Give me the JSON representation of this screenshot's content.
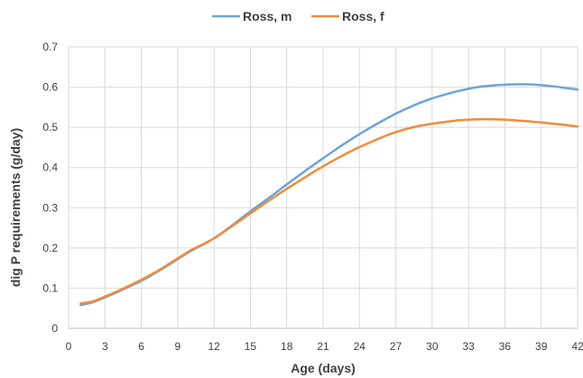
{
  "chart_data": {
    "type": "line",
    "title": "",
    "xlabel": "Age (days)",
    "ylabel": "dig P requirements (g/day)",
    "xlim": [
      0,
      42
    ],
    "ylim": [
      0,
      0.7
    ],
    "x_ticks": [
      0,
      3,
      6,
      9,
      12,
      15,
      18,
      21,
      24,
      27,
      30,
      33,
      36,
      39,
      42
    ],
    "y_ticks": [
      0,
      0.1,
      0.2,
      0.3,
      0.4,
      0.5,
      0.6,
      0.7
    ],
    "y_tick_labels": [
      "0",
      "0.1",
      "0.2",
      "0.3",
      "0.4",
      "0.5",
      "0.6",
      "0.7"
    ],
    "grid": "vertical and horizontal",
    "legend_position": "top-center",
    "series": [
      {
        "name": "Ross, m",
        "color": "#6fa3d6",
        "x": [
          1,
          2,
          3,
          4,
          5,
          6,
          7,
          8,
          9,
          10,
          11,
          12,
          13,
          14,
          15,
          16,
          17,
          18,
          19,
          20,
          21,
          22,
          23,
          24,
          25,
          26,
          27,
          28,
          29,
          30,
          31,
          32,
          33,
          34,
          35,
          36,
          37,
          38,
          39,
          40,
          41,
          42
        ],
        "y": [
          0.058,
          0.065,
          0.077,
          0.09,
          0.104,
          0.118,
          0.135,
          0.153,
          0.172,
          0.191,
          0.207,
          0.224,
          0.245,
          0.268,
          0.291,
          0.313,
          0.335,
          0.358,
          0.38,
          0.402,
          0.423,
          0.444,
          0.464,
          0.483,
          0.501,
          0.518,
          0.534,
          0.548,
          0.561,
          0.572,
          0.581,
          0.589,
          0.596,
          0.601,
          0.604,
          0.606,
          0.607,
          0.607,
          0.605,
          0.602,
          0.598,
          0.594
        ]
      },
      {
        "name": "Ross, f",
        "color": "#ed8d3e",
        "x": [
          1,
          2,
          3,
          4,
          5,
          6,
          7,
          8,
          9,
          10,
          11,
          12,
          13,
          14,
          15,
          16,
          17,
          18,
          19,
          20,
          21,
          22,
          23,
          24,
          25,
          26,
          27,
          28,
          29,
          30,
          31,
          32,
          33,
          34,
          35,
          36,
          37,
          38,
          39,
          40,
          41,
          42
        ],
        "y": [
          0.062,
          0.067,
          0.079,
          0.092,
          0.106,
          0.121,
          0.137,
          0.155,
          0.174,
          0.193,
          0.208,
          0.224,
          0.244,
          0.265,
          0.286,
          0.307,
          0.327,
          0.347,
          0.366,
          0.385,
          0.403,
          0.42,
          0.436,
          0.451,
          0.464,
          0.477,
          0.488,
          0.497,
          0.504,
          0.509,
          0.513,
          0.517,
          0.519,
          0.52,
          0.52,
          0.519,
          0.517,
          0.515,
          0.512,
          0.509,
          0.506,
          0.502
        ]
      }
    ]
  }
}
